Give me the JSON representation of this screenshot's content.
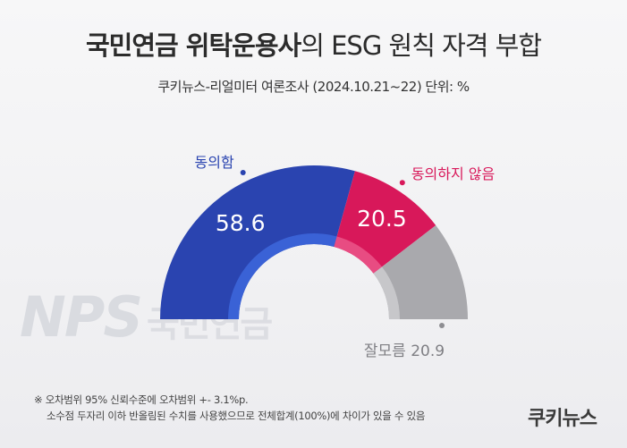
{
  "title_strong": "국민연금 위탁운용사",
  "title_light": "의 ESG 원칙 자격 부합",
  "subtitle": "쿠키뉴스-리얼미터 여론조사 (2024.10.21~22) 단위: %",
  "watermark": {
    "main": "NPS",
    "sub": "국민연금"
  },
  "footnote": [
    "※ 오차범위 95% 신뢰수준에 오차범위 +- 3.1%p.",
    "소수점 두자리 이하 반올림된 수치를 사용했으므로 전체합계(100%)에 차이가 있을 수 있음"
  ],
  "brand": "쿠키뉴스",
  "colors": {
    "agree": "#2a44b0",
    "agree_inner": "#3a62d6",
    "disagree": "#d8185a",
    "disagree_inner": "#e84c82",
    "unknown": "#a9a9ad",
    "unknown_inner": "#c7c7ca"
  },
  "chart_data": {
    "type": "pie",
    "variant": "semi-donut",
    "slices": [
      {
        "label": "동의함",
        "value": 58.6,
        "value_label": "58.6",
        "color": "#2a44b0"
      },
      {
        "label": "동의하지 않음",
        "value": 20.5,
        "value_label": "20.5",
        "color": "#d8185a"
      },
      {
        "label": "잘모름",
        "value": 20.9,
        "value_label": "잘모름 20.9",
        "color": "#a9a9ad"
      }
    ],
    "unit": "%"
  }
}
